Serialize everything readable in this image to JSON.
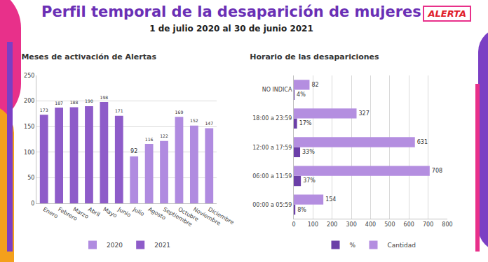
{
  "title": "Perfil temporal de la desaparición de mujeres",
  "subtitle": "1 de julio 2020 al 30 de junio 2021",
  "logo": "ALERTA",
  "chart_data": [
    {
      "type": "bar",
      "title": "Meses de activación de Alertas",
      "categories": [
        "Enero",
        "Febrero",
        "Marzo",
        "Abril",
        "Mayo",
        "Junio",
        "Julio",
        "Agosto",
        "Septiembre",
        "Octubre",
        "Noviembre",
        "Diciembre"
      ],
      "series": [
        {
          "name": "2020",
          "color": "#b08be0",
          "values": [
            null,
            null,
            null,
            null,
            null,
            null,
            92,
            116,
            122,
            169,
            152,
            147
          ]
        },
        {
          "name": "2021",
          "color": "#8e5cc9",
          "values": [
            173,
            187,
            188,
            190,
            198,
            171,
            null,
            null,
            null,
            null,
            null,
            null
          ]
        }
      ],
      "ylim": [
        0,
        250
      ],
      "yticks": [
        0,
        50,
        100,
        150,
        200,
        250
      ],
      "grid": true,
      "legend": "bottom",
      "data_labels": true
    },
    {
      "type": "bar",
      "orientation": "horizontal",
      "title": "Horario de las desapariciones",
      "categories": [
        "00:00 a 05:59",
        "06:00 a 11:59",
        "12:00 a 17:59",
        "18:00 a 23:59",
        "NO INDICA"
      ],
      "series": [
        {
          "name": "%",
          "color": "#6b3fa8",
          "values": [
            8,
            37,
            33,
            17,
            4
          ],
          "value_labels": [
            "8%",
            "37%",
            "33%",
            "17%",
            "4%"
          ]
        },
        {
          "name": "Cantidad",
          "color": "#b48ee0",
          "values": [
            154,
            708,
            631,
            327,
            82
          ]
        }
      ],
      "xlim": [
        0,
        800
      ],
      "xticks": [
        0,
        100,
        200,
        300,
        400,
        500,
        600,
        700,
        800
      ],
      "grid": true,
      "legend": "bottom",
      "data_labels": true
    }
  ]
}
